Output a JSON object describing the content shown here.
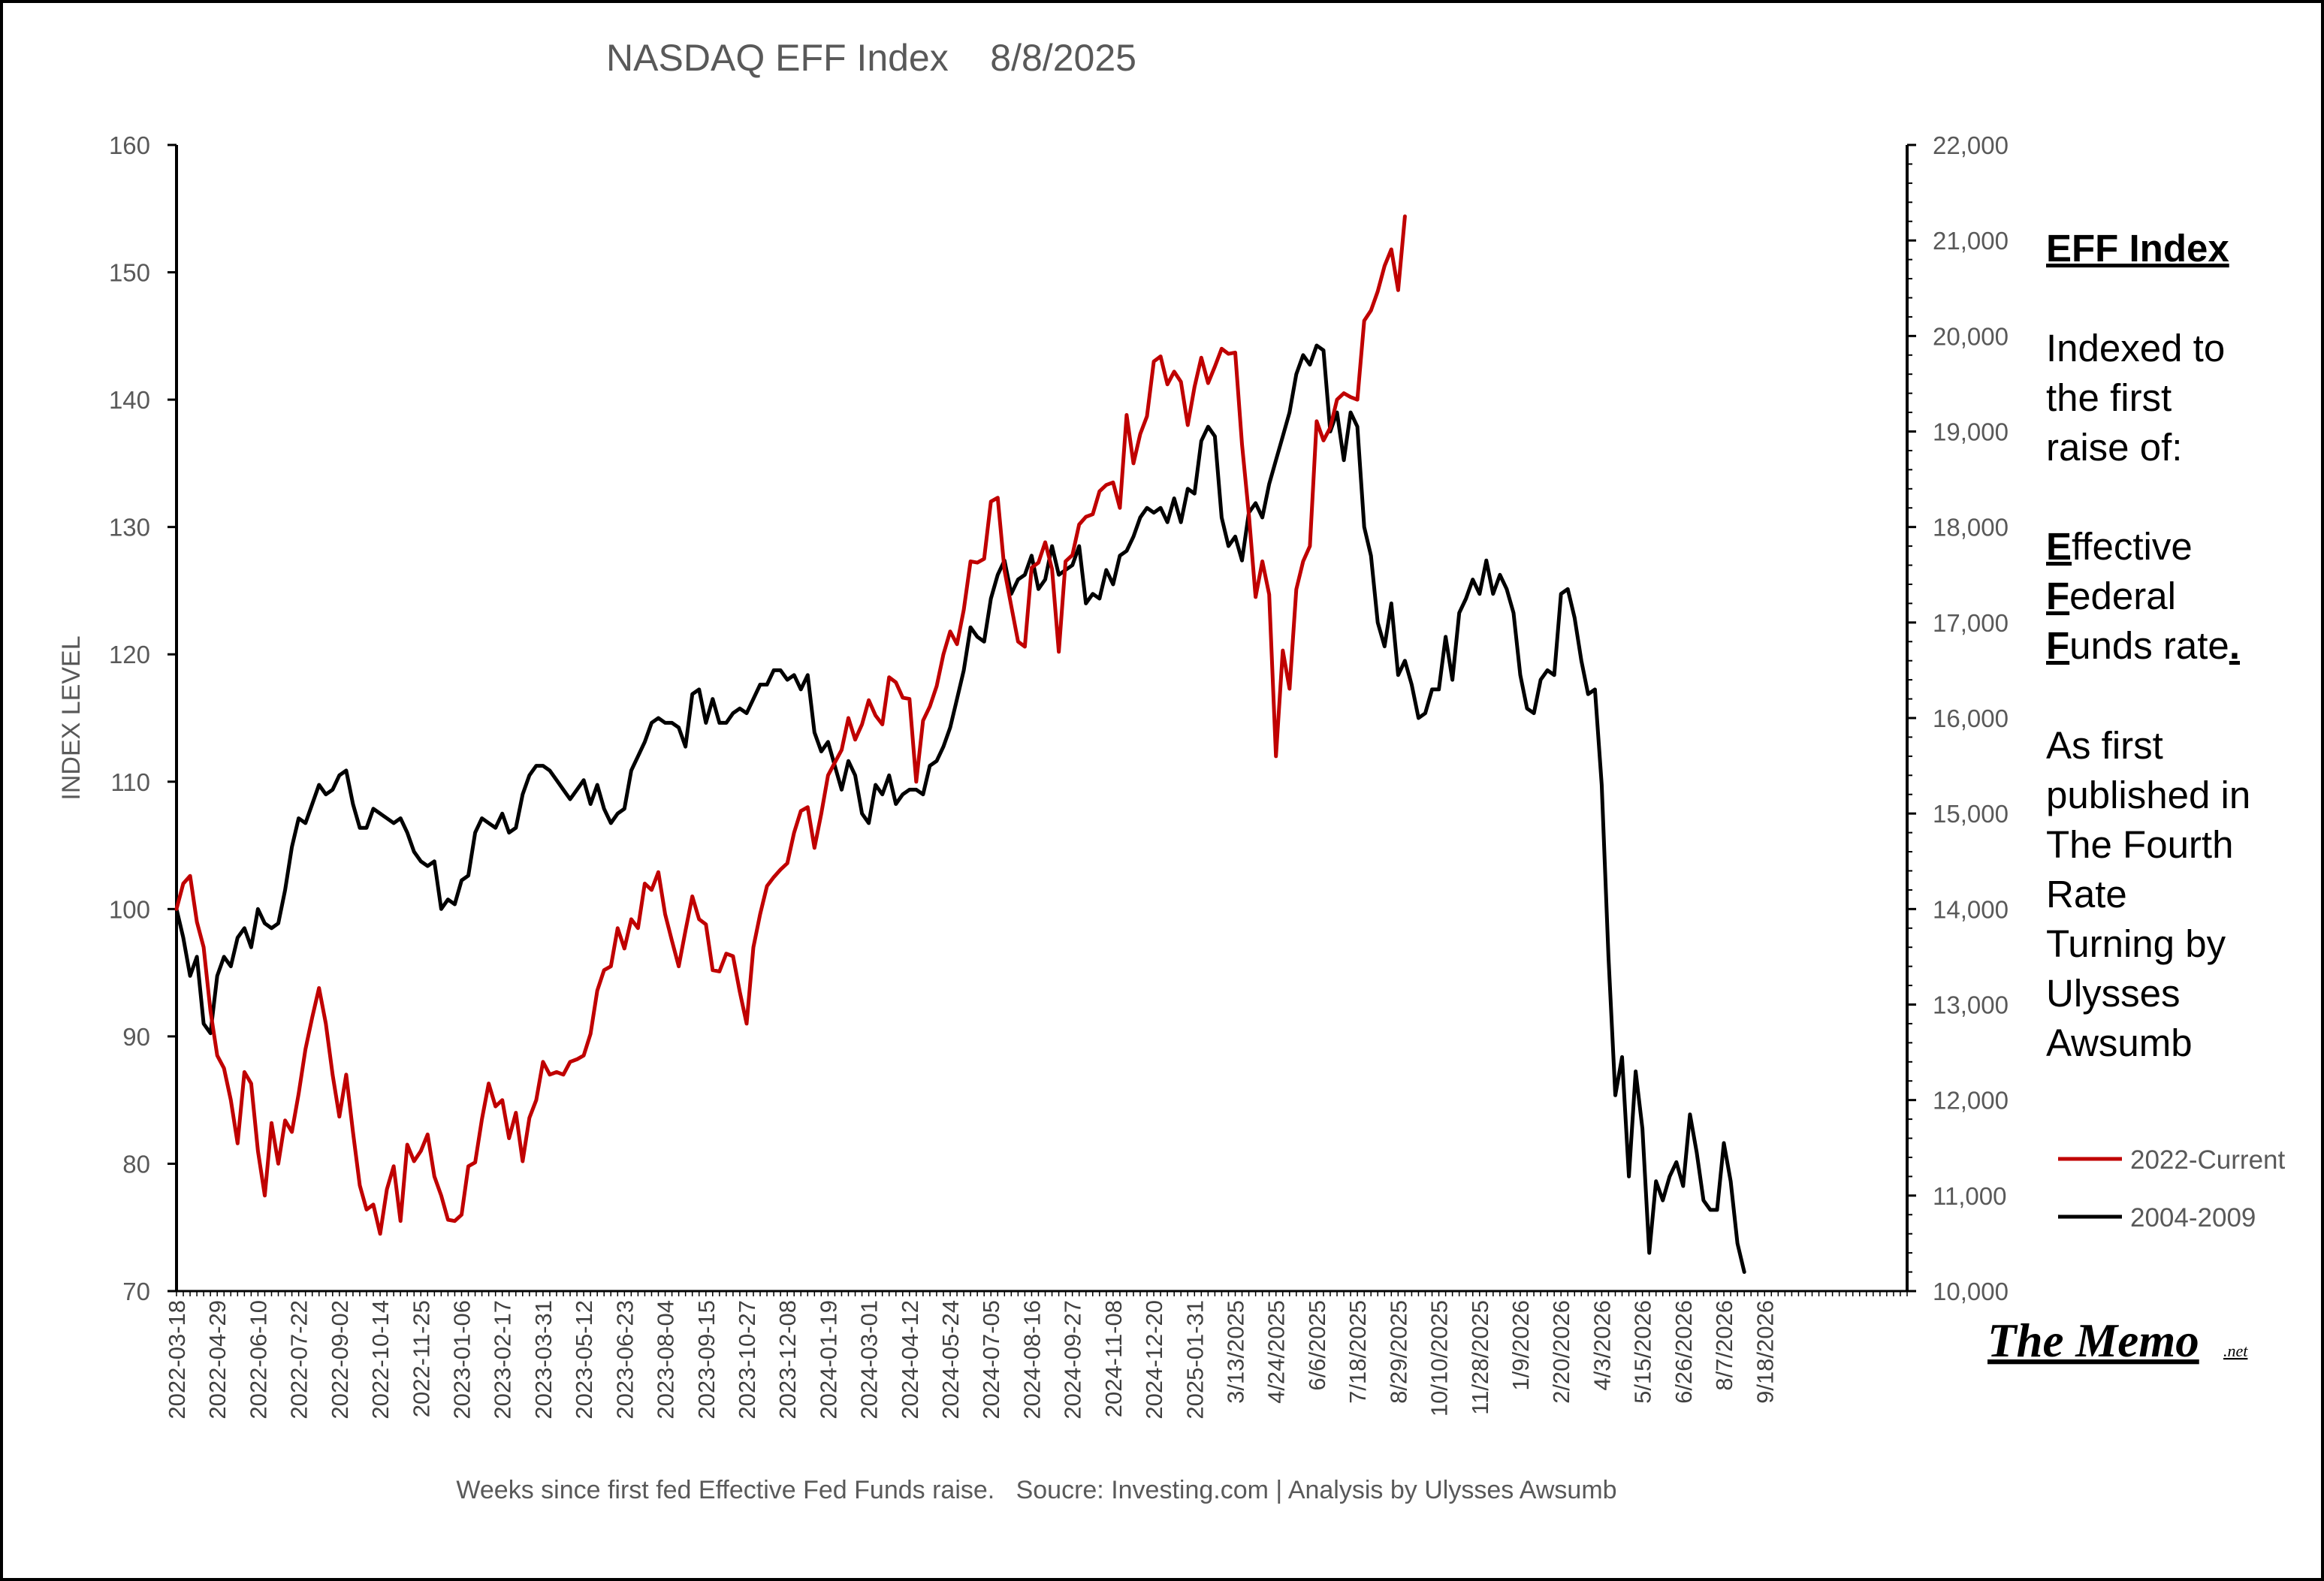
{
  "chart_data": {
    "type": "line",
    "title": "NASDAQ EFF Index    8/8/2025",
    "ylabel": "INDEX LEVEL",
    "xlabel": "Weeks since first fed Effective Fed Funds raise.   Soucre: Investing.com | Analysis by Ulysses Awsumb",
    "ylim": [
      70,
      160
    ],
    "y_ticks": [
      "160",
      "150",
      "140",
      "130",
      "120",
      "110",
      "100",
      "90",
      "80",
      "70"
    ],
    "y2lim": [
      10000,
      22000
    ],
    "y2_ticks": [
      "22,000",
      "21,000",
      "20,000",
      "19,000",
      "18,000",
      "17,000",
      "16,000",
      "15,000",
      "14,000",
      "13,000",
      "12,000",
      "11,000",
      "10,000"
    ],
    "x_tick_labels": [
      "2022-03-18",
      "2022-04-29",
      "2022-06-10",
      "2022-07-22",
      "2022-09-02",
      "2022-10-14",
      "2022-11-25",
      "2023-01-06",
      "2023-02-17",
      "2023-03-31",
      "2023-05-12",
      "2023-06-23",
      "2023-08-04",
      "2023-09-15",
      "2023-10-27",
      "2023-12-08",
      "2024-01-19",
      "2024-03-01",
      "2024-04-12",
      "2024-05-24",
      "2024-07-05",
      "2024-08-16",
      "2024-09-27",
      "2024-11-08",
      "2024-12-20",
      "2025-01-31",
      "3/13/2025",
      "4/24/2025",
      "6/6/2025",
      "7/18/2025",
      "8/29/2025",
      "10/10/2025",
      "11/28/2025",
      "1/9/2026",
      "2/20/2026",
      "4/3/2026",
      "5/15/2026",
      "6/26/2026",
      "8/7/2026",
      "9/18/2026"
    ],
    "grid": false,
    "legend_position": "right",
    "series": [
      {
        "name": "2022-Current",
        "color": "#C00000",
        "y": [
          100,
          102,
          102.6,
          99,
          97,
          92,
          88.5,
          87.5,
          85,
          81.6,
          87.2,
          86.3,
          81,
          77.5,
          83.2,
          80,
          83.4,
          82.5,
          85.5,
          89,
          91.5,
          93.8,
          91,
          87,
          83.7,
          87,
          82.5,
          78.3,
          76.4,
          76.8,
          74.5,
          78,
          79.8,
          75.5,
          81.5,
          80.2,
          81,
          82.3,
          79,
          77.5,
          75.6,
          75.5,
          76,
          79.8,
          80.1,
          83.5,
          86.3,
          84.5,
          85,
          82,
          84,
          80.2,
          83.6,
          85,
          88,
          87,
          87.2,
          87,
          88,
          88.2,
          88.5,
          90.2,
          93.6,
          95.2,
          95.5,
          98.5,
          96.9,
          99.2,
          98.5,
          102,
          101.5,
          102.9,
          99.6,
          97.5,
          95.5,
          98.3,
          101,
          99.2,
          98.8,
          95.2,
          95.1,
          96.5,
          96.3,
          93.5,
          91,
          97,
          99.6,
          101.8,
          102.5,
          103.1,
          103.6,
          106,
          107.7,
          108,
          104.8,
          107.5,
          110.5,
          111.5,
          112.5,
          115,
          113.3,
          114.5,
          116.4,
          115.2,
          114.5,
          118.2,
          117.8,
          116.6,
          116.5,
          110,
          114.8,
          115.9,
          117.5,
          120,
          121.8,
          120.8,
          123.5,
          127.3,
          127.2,
          127.5,
          132,
          132.3,
          126.6,
          123.8,
          121,
          120.6,
          126.8,
          127.2,
          128.8,
          126.7,
          120.2,
          127.3,
          127.8,
          130.2,
          130.8,
          131,
          132.8,
          133.3,
          133.5,
          131.5,
          138.8,
          135,
          137.3,
          138.7,
          143,
          143.4,
          141.2,
          142.2,
          141.4,
          138,
          141,
          143.3,
          141.3,
          142.6,
          144,
          143.6,
          143.7,
          136.5,
          131,
          124.5,
          127.3,
          124.7,
          112,
          120.3,
          117.3,
          125.1,
          127.3,
          128.5,
          138.3,
          136.8,
          137.8,
          140,
          140.5,
          140.2,
          140,
          146.2,
          147,
          148.5,
          150.5,
          151.8,
          148.6,
          154.4
        ]
      },
      {
        "name": "2004-2009",
        "color": "#000000",
        "y": [
          14000,
          13700,
          13300,
          13500,
          12800,
          12700,
          13300,
          13500,
          13400,
          13700,
          13800,
          13600,
          14000,
          13850,
          13800,
          13850,
          14200,
          14650,
          14950,
          14900,
          15100,
          15300,
          15200,
          15250,
          15400,
          15450,
          15100,
          14850,
          14850,
          15050,
          15000,
          14950,
          14900,
          14950,
          14800,
          14600,
          14500,
          14450,
          14500,
          14000,
          14100,
          14050,
          14300,
          14350,
          14800,
          14950,
          14900,
          14850,
          15000,
          14800,
          14850,
          15200,
          15400,
          15500,
          15500,
          15450,
          15350,
          15250,
          15150,
          15250,
          15350,
          15100,
          15300,
          15050,
          14900,
          15000,
          15050,
          15450,
          15600,
          15750,
          15950,
          16000,
          15950,
          15950,
          15900,
          15700,
          16250,
          16300,
          15950,
          16200,
          15950,
          15950,
          16050,
          16100,
          16050,
          16200,
          16350,
          16350,
          16500,
          16500,
          16400,
          16450,
          16300,
          16450,
          15850,
          15650,
          15750,
          15500,
          15250,
          15550,
          15400,
          15000,
          14900,
          15300,
          15200,
          15400,
          15100,
          15200,
          15250,
          15250,
          15200,
          15500,
          15550,
          15700,
          15900,
          16200,
          16500,
          16950,
          16850,
          16800,
          17250,
          17500,
          17650,
          17300,
          17450,
          17500,
          17700,
          17350,
          17450,
          17800,
          17500,
          17550,
          17600,
          17800,
          17200,
          17300,
          17250,
          17550,
          17400,
          17700,
          17750,
          17900,
          18100,
          18200,
          18150,
          18200,
          18050,
          18300,
          18050,
          18400,
          18350,
          18900,
          19050,
          18950,
          18100,
          17800,
          17900,
          17650,
          18150,
          18250,
          18100,
          18450,
          18700,
          18950,
          19200,
          19600,
          19800,
          19700,
          19900,
          19850,
          19000,
          19200,
          18700,
          19200,
          19050,
          18000,
          17700,
          17000,
          16750,
          17200,
          16450,
          16600,
          16350,
          16000,
          16050,
          16300,
          16300,
          16850,
          16400,
          17100,
          17250,
          17450,
          17300,
          17650,
          17300,
          17500,
          17350,
          17100,
          16450,
          16100,
          16050,
          16400,
          16500,
          16450,
          17300,
          17350,
          17050,
          16600,
          16250,
          16300,
          15300,
          13500,
          12050,
          12450,
          11200,
          12300,
          11700,
          10400,
          11150,
          10950,
          11200,
          11350,
          11100,
          11850,
          11450,
          10950,
          10850,
          10850,
          11550,
          11150,
          10500,
          10200
        ]
      }
    ]
  },
  "sidebar": {
    "heading": "EFF Index",
    "line1": "Indexed to",
    "line2": "the first",
    "line3": "raise of:",
    "eff_e_bold": "E",
    "eff_e_rest": "ffective",
    "eff_f1_bold": "F",
    "eff_f1_rest": "ederal",
    "eff_f2_bold": "F",
    "eff_f2_rest": "unds rate",
    "eff_period": ".",
    "pub1": "As first",
    "pub2": "published in",
    "pub3": "The Fourth",
    "pub4": "Rate",
    "pub5": "Turning by",
    "pub6": "Ulysses",
    "pub7": "Awsumb"
  },
  "legend": [
    {
      "label": "2022-Current",
      "color": "#C00000"
    },
    {
      "label": "2004-2009",
      "color": "#000000"
    }
  ],
  "logo": {
    "main": "The Memo",
    "suffix": ".net"
  }
}
